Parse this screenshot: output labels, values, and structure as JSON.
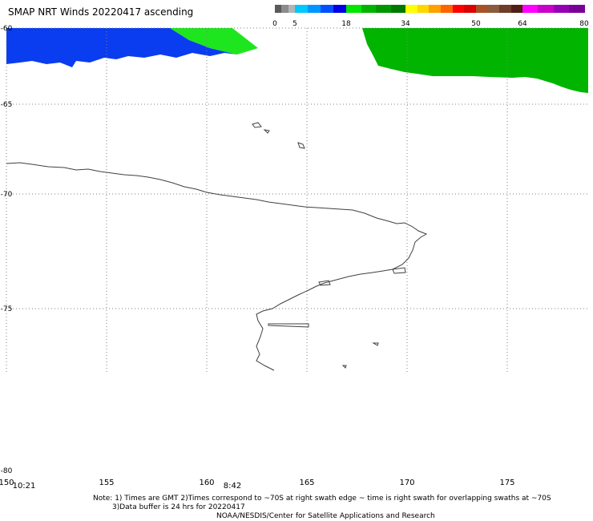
{
  "title": "SMAP NRT Winds 20220417 ascending",
  "colorbar": {
    "labels": [
      "0",
      "5",
      "18",
      "34",
      "50",
      "64",
      "80"
    ],
    "segments": [
      "#5a5a5a",
      "#8c8c8c",
      "#b4b4b4",
      "#00c8ff",
      "#0096ff",
      "#0050ff",
      "#0000e6",
      "#00e600",
      "#00b400",
      "#009600",
      "#007800",
      "#ffff00",
      "#ffd700",
      "#ffa000",
      "#ff6400",
      "#ff0000",
      "#dc0000",
      "#aa5028",
      "#8c5a3c",
      "#6e3c28",
      "#501e14",
      "#ff00ff",
      "#c800c8",
      "#9600b4",
      "#780096"
    ]
  },
  "map": {
    "lat_labels": [
      "-60",
      "-65",
      "-70",
      "-75",
      "-80"
    ],
    "lon_labels": [
      "150",
      "155",
      "160",
      "165",
      "170",
      "175"
    ],
    "time_labels": [
      "10:21",
      "8:42"
    ],
    "colors": {
      "swath_blue": "#0a3cf0",
      "swath_green": "#00b400",
      "swath_lightgreen": "#1ee61e",
      "coast": "#404040",
      "grid": "#808080"
    }
  },
  "notes": {
    "line1": "Note: 1) Times are GMT 2)Times correspond to ~70S at right swath edge ~ time is right swath for overlapping swaths at ~70S",
    "line2": "3)Data buffer is 24 hrs for 20220417"
  },
  "credit": "NOAA/NESDIS/Center for Satellite Applications and Research"
}
